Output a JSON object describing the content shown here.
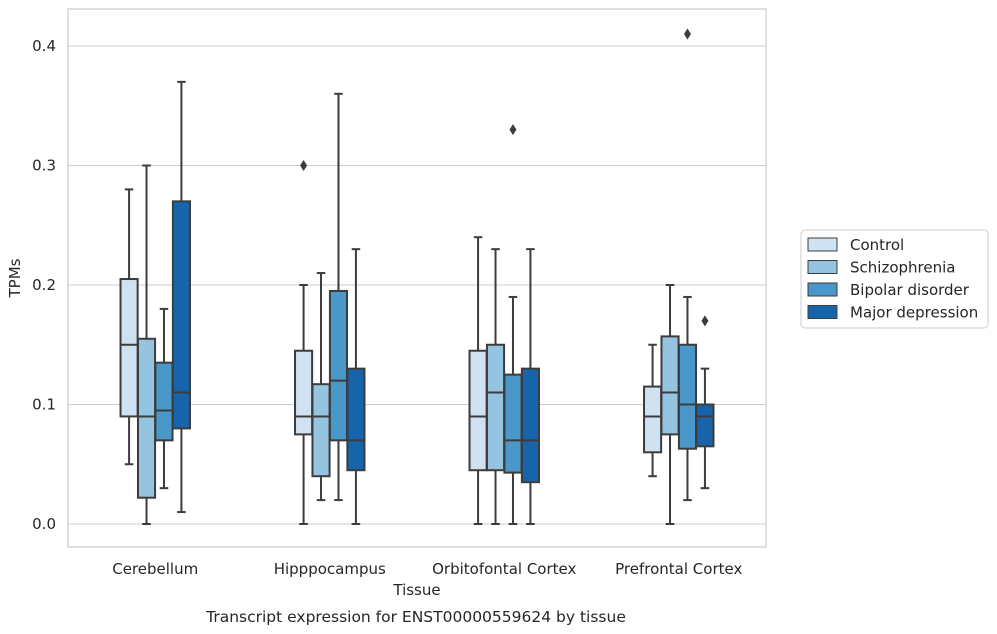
{
  "chart_data": {
    "type": "box",
    "title": "Transcript expression for ENST00000559624 by tissue",
    "xlabel": "Tissue",
    "ylabel": "TPMs",
    "ylim": [
      -0.02,
      0.43
    ],
    "yticks": [
      0.0,
      0.1,
      0.2,
      0.3,
      0.4
    ],
    "ytick_labels": [
      "0.0",
      "0.1",
      "0.2",
      "0.3",
      "0.4"
    ],
    "grid": "horizontal",
    "legend_position": "right",
    "categories": [
      "Cerebellum",
      "Hipppocampus",
      "Orbitofontal Cortex",
      "Prefrontal Cortex"
    ],
    "series": [
      {
        "name": "Control",
        "color": "#d0e1f2",
        "boxes": [
          {
            "whisker_low": 0.05,
            "q1": 0.09,
            "median": 0.15,
            "q3": 0.205,
            "whisker_high": 0.28,
            "outliers": []
          },
          {
            "whisker_low": 0.0,
            "q1": 0.075,
            "median": 0.09,
            "q3": 0.145,
            "whisker_high": 0.2,
            "outliers": [
              0.3
            ]
          },
          {
            "whisker_low": 0.0,
            "q1": 0.045,
            "median": 0.09,
            "q3": 0.145,
            "whisker_high": 0.24,
            "outliers": []
          },
          {
            "whisker_low": 0.04,
            "q1": 0.06,
            "median": 0.09,
            "q3": 0.115,
            "whisker_high": 0.15,
            "outliers": []
          }
        ]
      },
      {
        "name": "Schizophrenia",
        "color": "#94c4df",
        "boxes": [
          {
            "whisker_low": 0.0,
            "q1": 0.022,
            "median": 0.09,
            "q3": 0.155,
            "whisker_high": 0.3,
            "outliers": []
          },
          {
            "whisker_low": 0.02,
            "q1": 0.04,
            "median": 0.09,
            "q3": 0.117,
            "whisker_high": 0.21,
            "outliers": []
          },
          {
            "whisker_low": 0.0,
            "q1": 0.045,
            "median": 0.11,
            "q3": 0.15,
            "whisker_high": 0.23,
            "outliers": []
          },
          {
            "whisker_low": 0.0,
            "q1": 0.075,
            "median": 0.11,
            "q3": 0.157,
            "whisker_high": 0.2,
            "outliers": []
          }
        ]
      },
      {
        "name": "Bipolar disorder",
        "color": "#4a98c9",
        "boxes": [
          {
            "whisker_low": 0.03,
            "q1": 0.07,
            "median": 0.095,
            "q3": 0.135,
            "whisker_high": 0.18,
            "outliers": []
          },
          {
            "whisker_low": 0.02,
            "q1": 0.07,
            "median": 0.12,
            "q3": 0.195,
            "whisker_high": 0.36,
            "outliers": []
          },
          {
            "whisker_low": 0.0,
            "q1": 0.043,
            "median": 0.07,
            "q3": 0.125,
            "whisker_high": 0.19,
            "outliers": [
              0.33
            ]
          },
          {
            "whisker_low": 0.02,
            "q1": 0.063,
            "median": 0.1,
            "q3": 0.15,
            "whisker_high": 0.19,
            "outliers": [
              0.41
            ]
          }
        ]
      },
      {
        "name": "Major depression",
        "color": "#1764ab",
        "boxes": [
          {
            "whisker_low": 0.01,
            "q1": 0.08,
            "median": 0.11,
            "q3": 0.27,
            "whisker_high": 0.37,
            "outliers": []
          },
          {
            "whisker_low": 0.0,
            "q1": 0.045,
            "median": 0.07,
            "q3": 0.13,
            "whisker_high": 0.23,
            "outliers": []
          },
          {
            "whisker_low": 0.0,
            "q1": 0.035,
            "median": 0.07,
            "q3": 0.13,
            "whisker_high": 0.23,
            "outliers": []
          },
          {
            "whisker_low": 0.03,
            "q1": 0.065,
            "median": 0.09,
            "q3": 0.1,
            "whisker_high": 0.13,
            "outliers": [
              0.17
            ]
          }
        ]
      }
    ]
  }
}
